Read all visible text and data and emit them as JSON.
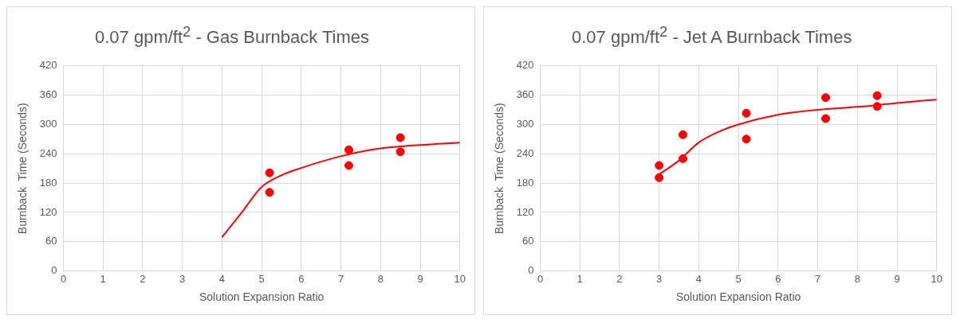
{
  "chart_data": [
    {
      "type": "scatter",
      "title": "0.07 gpm/ft$^{2}$ - Gas Burnback Times",
      "xlabel": "Solution Expansion Ratio",
      "ylabel": "Burnback  Time (Seconds)",
      "xlim": [
        0,
        10
      ],
      "xticks": [
        0,
        1,
        2,
        3,
        4,
        5,
        6,
        7,
        8,
        9,
        10
      ],
      "ylim": [
        0,
        420
      ],
      "yticks": [
        0,
        60,
        120,
        180,
        240,
        300,
        360,
        420
      ],
      "grid": true,
      "legend": false,
      "series": [
        {
          "color": "#ff0000",
          "marker": "circle",
          "x": [
            5.2,
            5.2,
            7.2,
            7.2,
            8.5,
            8.5
          ],
          "values": [
            201,
            161,
            248,
            216,
            273,
            244
          ]
        },
        {
          "type": "line",
          "color": "#ff0000",
          "marker": "none",
          "x": [
            4,
            4.5,
            5,
            5.5,
            6,
            7,
            8,
            9,
            10
          ],
          "values": [
            69,
            120,
            172,
            196,
            211,
            235,
            251,
            258,
            263
          ]
        }
      ]
    },
    {
      "type": "scatter",
      "title": "0.07 gpm/ft$^{2}$ - Jet A Burnback Times",
      "xlabel": "Solution Expansion Ratio",
      "ylabel": "Burnback  Time (Seconds)",
      "xlim": [
        0,
        10
      ],
      "xticks": [
        0,
        1,
        2,
        3,
        4,
        5,
        6,
        7,
        8,
        9,
        10
      ],
      "ylim": [
        0,
        420
      ],
      "yticks": [
        0,
        60,
        120,
        180,
        240,
        300,
        360,
        420
      ],
      "grid": true,
      "legend": false,
      "series": [
        {
          "color": "#ff0000",
          "marker": "circle",
          "x": [
            3,
            3,
            3.6,
            3.6,
            5.2,
            5.2,
            7.2,
            7.2,
            8.5,
            8.5
          ],
          "values": [
            216,
            191,
            279,
            230,
            323,
            270,
            355,
            312,
            359,
            337
          ]
        },
        {
          "type": "line",
          "color": "#ff0000",
          "marker": "none",
          "x": [
            3,
            3.5,
            4,
            4.5,
            5,
            6,
            7,
            8,
            9,
            10
          ],
          "values": [
            198,
            226,
            263,
            285,
            300,
            320,
            330,
            336,
            344,
            351
          ]
        }
      ]
    }
  ]
}
